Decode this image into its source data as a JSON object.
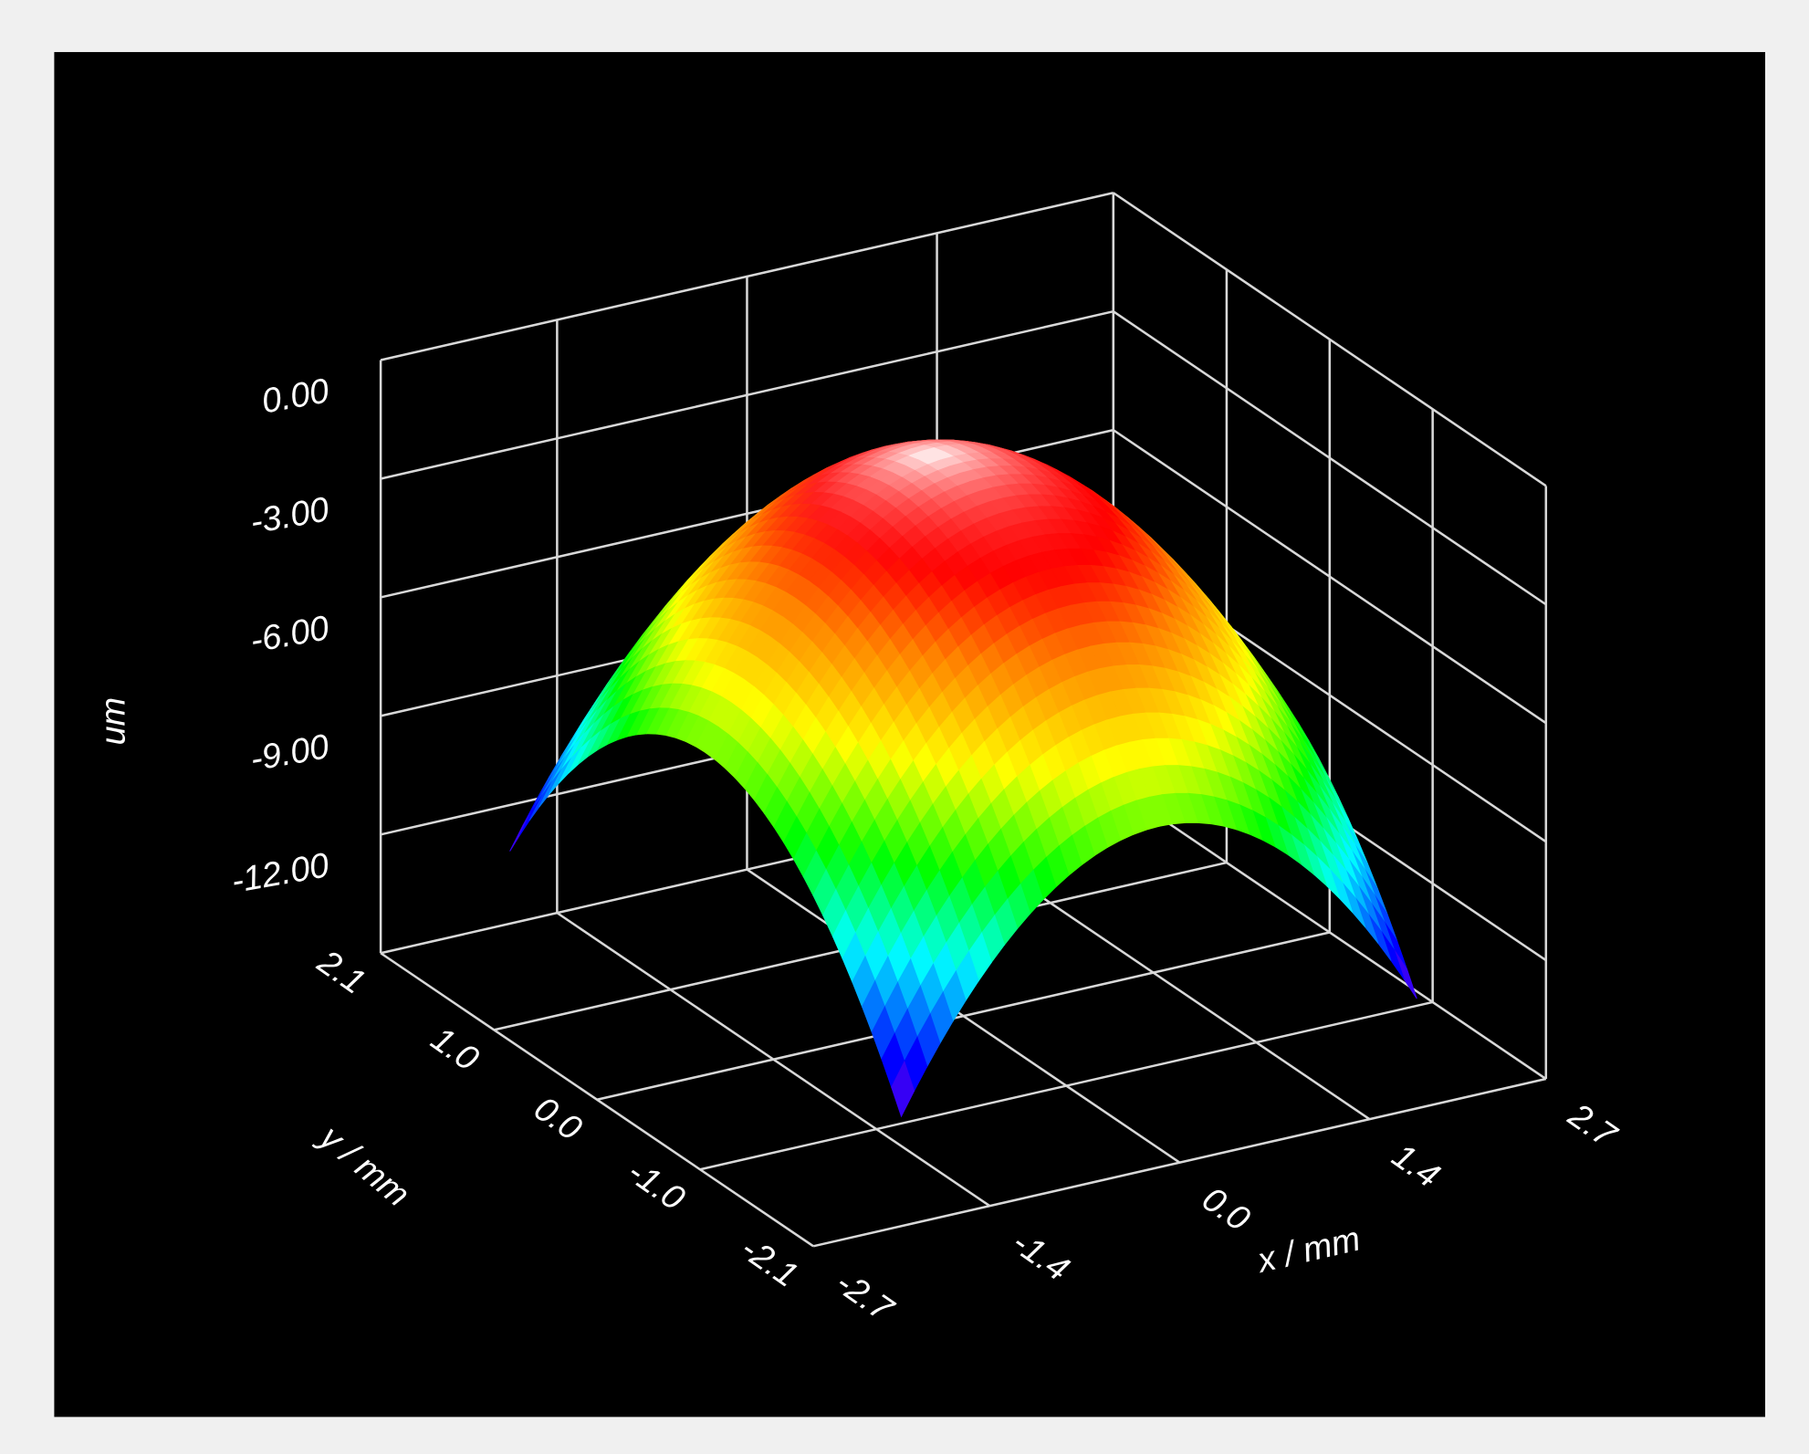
{
  "chart_data": {
    "type": "surface3d",
    "zlabel": "um",
    "xlabel": "x / mm",
    "ylabel": "y / mm",
    "xlim": [
      -2.7,
      2.7
    ],
    "xticks": [
      -2.7,
      -1.4,
      {
        "value": 0,
        "label": "0.0"
      },
      1.4,
      2.7
    ],
    "ylim": [
      -2.1,
      2.1
    ],
    "yticks": [
      -2.1,
      {
        "value": -1,
        "label": "-1.0"
      },
      {
        "value": 0,
        "label": "0.0"
      },
      {
        "value": 1,
        "label": "1.0"
      },
      2.1
    ],
    "zlim": [
      -15,
      0
    ],
    "zticks": [
      {
        "value": -12,
        "label": "-12.00"
      },
      {
        "value": -9,
        "label": "-9.00"
      },
      {
        "value": -6,
        "label": "-6.00"
      },
      {
        "value": -3,
        "label": "-3.00"
      },
      {
        "value": 0,
        "label": "0.00"
      }
    ],
    "grid": true
  }
}
